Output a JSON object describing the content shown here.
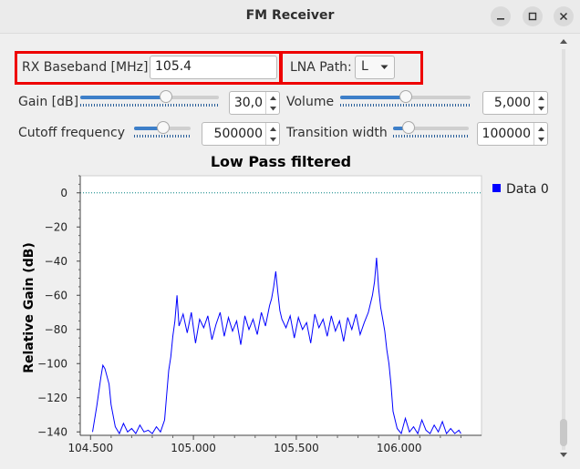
{
  "window": {
    "title": "FM Receiver"
  },
  "controls": {
    "rx_baseband": {
      "label": "RX Baseband [MHz]:",
      "value": "105.4"
    },
    "lna_path": {
      "label": "LNA Path:",
      "value": "L"
    },
    "gain": {
      "label": "Gain [dB]",
      "value": "30,0",
      "level": 0.62
    },
    "volume": {
      "label": "Volume",
      "value": "5,000",
      "level": 0.5
    },
    "cutoff": {
      "label": "Cutoff frequency",
      "value": "500000",
      "level": 0.52
    },
    "transition": {
      "label": "Transition width",
      "value": "100000",
      "level": 0.2
    }
  },
  "accent_color": "#3d7fc9",
  "highlight_color": "#ee0000",
  "chart_data": {
    "type": "line",
    "title": "Low Pass filtered",
    "ylabel": "Relative Gain (dB)",
    "xlabel": "",
    "xlim": [
      104.45,
      106.4
    ],
    "ylim": [
      -142,
      10
    ],
    "x_ticks": [
      "104.500",
      "105.000",
      "105.500",
      "106.000"
    ],
    "x_tick_values": [
      104.5,
      105.0,
      105.5,
      106.0
    ],
    "y_ticks": [
      "0",
      "−20",
      "−40",
      "−60",
      "−80",
      "−100",
      "−120",
      "−140"
    ],
    "y_tick_values": [
      0,
      -20,
      -40,
      -60,
      -80,
      -100,
      -120,
      -140
    ],
    "legend": {
      "position": "top-right",
      "entries": [
        "Data 0"
      ]
    },
    "reference_line": {
      "y": 0,
      "color": "#008080"
    },
    "series": [
      {
        "name": "Data 0",
        "color": "#0000ff",
        "x": [
          104.51,
          104.53,
          104.55,
          104.56,
          104.57,
          104.59,
          104.6,
          104.62,
          104.64,
          104.66,
          104.68,
          104.7,
          104.72,
          104.74,
          104.76,
          104.78,
          104.8,
          104.82,
          104.84,
          104.86,
          104.87,
          104.88,
          104.89,
          104.9,
          104.91,
          104.92,
          104.93,
          104.95,
          104.97,
          104.99,
          105.01,
          105.03,
          105.05,
          105.07,
          105.09,
          105.11,
          105.13,
          105.15,
          105.17,
          105.19,
          105.21,
          105.23,
          105.25,
          105.27,
          105.29,
          105.31,
          105.33,
          105.35,
          105.37,
          105.38,
          105.39,
          105.4,
          105.41,
          105.42,
          105.43,
          105.45,
          105.47,
          105.49,
          105.51,
          105.53,
          105.55,
          105.57,
          105.59,
          105.61,
          105.63,
          105.65,
          105.67,
          105.69,
          105.71,
          105.73,
          105.75,
          105.77,
          105.79,
          105.81,
          105.83,
          105.85,
          105.87,
          105.88,
          105.89,
          105.9,
          105.91,
          105.92,
          105.93,
          105.94,
          105.95,
          105.96,
          105.97,
          105.99,
          106.01,
          106.03,
          106.05,
          106.07,
          106.09,
          106.11,
          106.13,
          106.15,
          106.17,
          106.19,
          106.21,
          106.23,
          106.25,
          106.27,
          106.29,
          106.3
        ],
        "y": [
          -140,
          -125,
          -108,
          -101,
          -103,
          -112,
          -124,
          -137,
          -141,
          -135,
          -140,
          -138,
          -141,
          -136,
          -140,
          -139,
          -141,
          -137,
          -140,
          -133,
          -118,
          -104,
          -96,
          -84,
          -75,
          -60,
          -78,
          -71,
          -82,
          -70,
          -88,
          -74,
          -79,
          -72,
          -86,
          -77,
          -70,
          -84,
          -73,
          -81,
          -75,
          -89,
          -72,
          -80,
          -74,
          -83,
          -70,
          -78,
          -66,
          -62,
          -55,
          -46,
          -58,
          -69,
          -74,
          -79,
          -72,
          -85,
          -73,
          -80,
          -76,
          -88,
          -71,
          -79,
          -74,
          -84,
          -72,
          -81,
          -75,
          -87,
          -73,
          -80,
          -71,
          -83,
          -76,
          -70,
          -60,
          -52,
          -38,
          -56,
          -67,
          -74,
          -81,
          -92,
          -100,
          -112,
          -128,
          -138,
          -141,
          -132,
          -140,
          -137,
          -141,
          -133,
          -139,
          -141,
          -136,
          -140,
          -134,
          -141,
          -138,
          -141,
          -139,
          -141
        ]
      }
    ]
  }
}
